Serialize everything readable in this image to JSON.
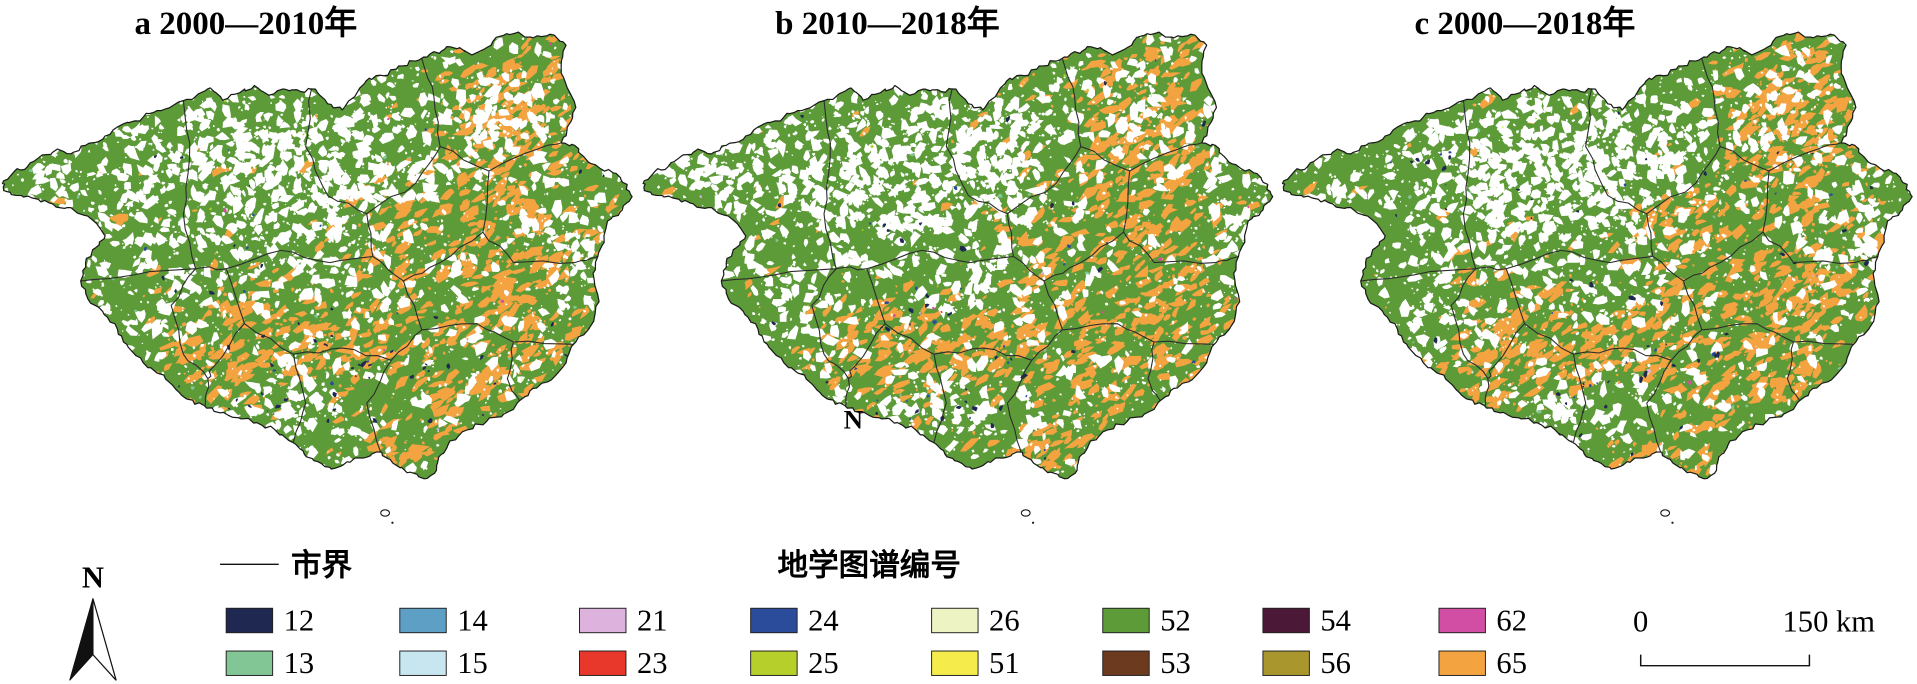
{
  "panels": [
    {
      "title": "a 2000—2010年"
    },
    {
      "title": "b 2010—2018年",
      "map_label": "N"
    },
    {
      "title": "c 2000—2018年"
    }
  ],
  "legend": {
    "boundary_label": "市界",
    "title": "地学图谱编号",
    "items": [
      {
        "code": "12",
        "color": "#1f2851"
      },
      {
        "code": "13",
        "color": "#82c696"
      },
      {
        "code": "14",
        "color": "#5d9fc5"
      },
      {
        "code": "15",
        "color": "#c8e6ef"
      },
      {
        "code": "21",
        "color": "#ddb3dd"
      },
      {
        "code": "23",
        "color": "#e8382b"
      },
      {
        "code": "24",
        "color": "#2b4c9b"
      },
      {
        "code": "25",
        "color": "#b7cf2b"
      },
      {
        "code": "26",
        "color": "#eef3c4"
      },
      {
        "code": "51",
        "color": "#f5ec4c"
      },
      {
        "code": "52",
        "color": "#5d9a38"
      },
      {
        "code": "53",
        "color": "#6b3a1f"
      },
      {
        "code": "54",
        "color": "#4b1838"
      },
      {
        "code": "56",
        "color": "#a9972e"
      },
      {
        "code": "62",
        "color": "#d14ea4"
      },
      {
        "code": "65",
        "color": "#f4a341"
      }
    ]
  },
  "north_arrow": {
    "label": "N"
  },
  "scale_bar": {
    "start": "0",
    "end": "150 km"
  },
  "map_colors": {
    "unchanged": "#ffffff",
    "city_boundary": "#2d2d2d",
    "province_outline": "#1a1a1a"
  }
}
